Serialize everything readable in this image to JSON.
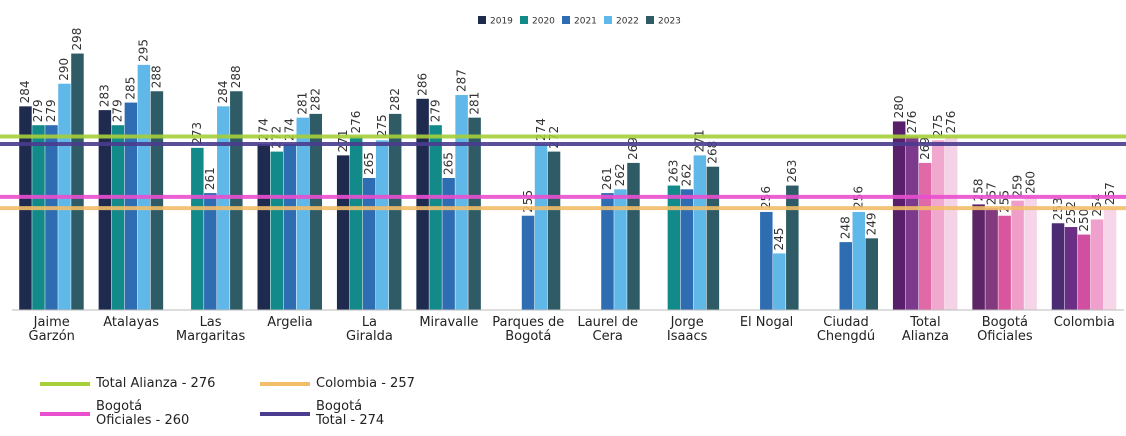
{
  "chart_data": {
    "type": "bar",
    "categories": [
      "Jaime\nGarzón",
      "Atalayas",
      "Las\nMargaritas",
      "Argelia",
      "La\nGiralda",
      "Miravalle",
      "Parques de\nBogotá",
      "Laurel de\nCera",
      "Jorge\nIsaacs",
      "El Nogal",
      "Ciudad\nChengdú",
      "Total\nAlianza",
      "Bogotá\nOficiales",
      "Colombia"
    ],
    "series": [
      {
        "name": "2019",
        "color": "#1f2a4f",
        "colors": [
          "#1f2a4f",
          "#1f2a4f",
          "#1f2a4f",
          "#1f2a4f",
          "#1f2a4f",
          "#1f2a4f",
          "#1f2a4f",
          "#1f2a4f",
          "#1f2a4f",
          "#1f2a4f",
          "#1f2a4f",
          "#5a1f6b",
          "#5d2466",
          "#4b2b72"
        ],
        "values": [
          284,
          283,
          null,
          274,
          271,
          286,
          null,
          null,
          null,
          null,
          null,
          280,
          258,
          253
        ]
      },
      {
        "name": "2020",
        "color": "#138a8a",
        "colors": [
          "#138a8a",
          "#138a8a",
          "#138a8a",
          "#138a8a",
          "#138a8a",
          "#138a8a",
          "#138a8a",
          "#138a8a",
          "#138a8a",
          "#138a8a",
          "#138a8a",
          "#7d3a8c",
          "#823a7e",
          "#6a2e84"
        ],
        "values": [
          279,
          279,
          273,
          272,
          276,
          279,
          null,
          null,
          263,
          null,
          null,
          276,
          257,
          252
        ]
      },
      {
        "name": "2021",
        "color": "#2f6db3",
        "colors": [
          "#2f6db3",
          "#2f6db3",
          "#2f6db3",
          "#2f6db3",
          "#2f6db3",
          "#2f6db3",
          "#2f6db3",
          "#2f6db3",
          "#2f6db3",
          "#2f6db3",
          "#2f6db3",
          "#e06aa8",
          "#d9559d",
          "#d04fa0"
        ],
        "values": [
          279,
          285,
          261,
          274,
          265,
          265,
          255,
          261,
          262,
          256,
          248,
          269,
          255,
          250
        ]
      },
      {
        "name": "2022",
        "color": "#5fb8e8",
        "colors": [
          "#5fb8e8",
          "#5fb8e8",
          "#5fb8e8",
          "#5fb8e8",
          "#5fb8e8",
          "#5fb8e8",
          "#5fb8e8",
          "#5fb8e8",
          "#5fb8e8",
          "#5fb8e8",
          "#5fb8e8",
          "#f1a8cf",
          "#ee9ec8",
          "#f0a0cc"
        ],
        "values": [
          290,
          295,
          284,
          281,
          275,
          287,
          274,
          262,
          271,
          245,
          256,
          275,
          259,
          254
        ]
      },
      {
        "name": "2023",
        "color": "#2e5b66",
        "colors": [
          "#2e5b66",
          "#2e5b66",
          "#2e5b66",
          "#2e5b66",
          "#2e5b66",
          "#2e5b66",
          "#2e5b66",
          "#2e5b66",
          "#2e5b66",
          "#2e5b66",
          "#2e5b66",
          "#f4d3e6",
          "#f5d5e7",
          "#f6d6e8"
        ],
        "values": [
          298,
          288,
          288,
          282,
          282,
          281,
          272,
          269,
          268,
          263,
          249,
          276,
          260,
          257
        ]
      }
    ],
    "reference_lines": [
      {
        "label": "Total Alianza - 276",
        "value": 276,
        "color": "#a6cf3a"
      },
      {
        "label": "Colombia - 257",
        "value": 257,
        "color": "#f2be6a"
      },
      {
        "label": "Bogotá\nOficiales - 260",
        "value": 260,
        "color": "#ea4fd0"
      },
      {
        "label": "Bogotá\nTotal - 274",
        "value": 274,
        "color": "#4b3c8f"
      }
    ],
    "ylim": [
      230,
      300
    ]
  }
}
